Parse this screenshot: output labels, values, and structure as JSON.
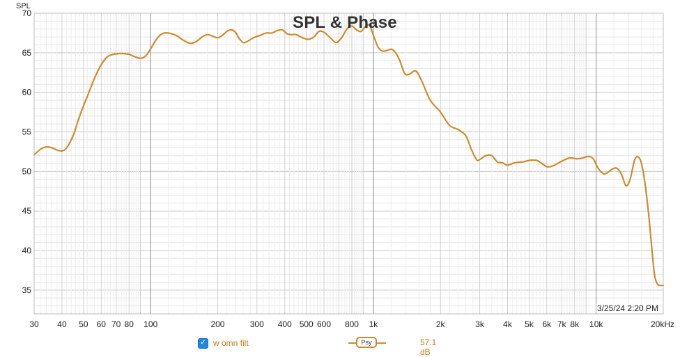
{
  "chart_data": {
    "type": "line",
    "title": "SPL & Phase",
    "ylabel": "SPL",
    "xlabel": "",
    "x_scale": "log",
    "xlim": [
      30,
      20000
    ],
    "ylim": [
      32,
      70
    ],
    "y_ticks": [
      35,
      40,
      45,
      50,
      55,
      60,
      65,
      70
    ],
    "x_ticks": [
      {
        "value": 30,
        "label": "30"
      },
      {
        "value": 40,
        "label": "40"
      },
      {
        "value": 50,
        "label": "50"
      },
      {
        "value": 60,
        "label": "60"
      },
      {
        "value": 70,
        "label": "70"
      },
      {
        "value": 80,
        "label": "80"
      },
      {
        "value": 100,
        "label": "100"
      },
      {
        "value": 200,
        "label": "200"
      },
      {
        "value": 300,
        "label": "300"
      },
      {
        "value": 400,
        "label": "400"
      },
      {
        "value": 500,
        "label": "500"
      },
      {
        "value": 600,
        "label": "600"
      },
      {
        "value": 800,
        "label": "800"
      },
      {
        "value": 1000,
        "label": "1k"
      },
      {
        "value": 2000,
        "label": "2k"
      },
      {
        "value": 3000,
        "label": "3k"
      },
      {
        "value": 4000,
        "label": "4k"
      },
      {
        "value": 5000,
        "label": "5k"
      },
      {
        "value": 6000,
        "label": "6k"
      },
      {
        "value": 7000,
        "label": "7k"
      },
      {
        "value": 8000,
        "label": "8k"
      },
      {
        "value": 10000,
        "label": "10k"
      },
      {
        "value": 20000,
        "label": "20kHz"
      }
    ],
    "grid": true,
    "series": [
      {
        "name": "w omn filt",
        "color": "#d08a2c",
        "points": [
          [
            30,
            52.1
          ],
          [
            32,
            52.8
          ],
          [
            34,
            53.1
          ],
          [
            36,
            53.0
          ],
          [
            38,
            52.7
          ],
          [
            40,
            52.6
          ],
          [
            42,
            53.0
          ],
          [
            45,
            54.6
          ],
          [
            48,
            57.0
          ],
          [
            52,
            59.5
          ],
          [
            56,
            61.8
          ],
          [
            60,
            63.5
          ],
          [
            64,
            64.5
          ],
          [
            68,
            64.8
          ],
          [
            72,
            64.9
          ],
          [
            76,
            64.9
          ],
          [
            80,
            64.8
          ],
          [
            85,
            64.5
          ],
          [
            90,
            64.3
          ],
          [
            95,
            64.6
          ],
          [
            100,
            65.5
          ],
          [
            105,
            66.5
          ],
          [
            110,
            67.2
          ],
          [
            115,
            67.5
          ],
          [
            120,
            67.5
          ],
          [
            130,
            67.2
          ],
          [
            140,
            66.6
          ],
          [
            150,
            66.2
          ],
          [
            160,
            66.4
          ],
          [
            170,
            67.0
          ],
          [
            180,
            67.3
          ],
          [
            190,
            67.1
          ],
          [
            200,
            66.9
          ],
          [
            210,
            67.2
          ],
          [
            220,
            67.7
          ],
          [
            230,
            67.9
          ],
          [
            240,
            67.6
          ],
          [
            250,
            66.8
          ],
          [
            260,
            66.3
          ],
          [
            270,
            66.4
          ],
          [
            290,
            66.9
          ],
          [
            310,
            67.2
          ],
          [
            330,
            67.5
          ],
          [
            350,
            67.5
          ],
          [
            370,
            67.8
          ],
          [
            390,
            67.9
          ],
          [
            410,
            67.4
          ],
          [
            430,
            67.3
          ],
          [
            450,
            67.3
          ],
          [
            480,
            66.9
          ],
          [
            510,
            66.7
          ],
          [
            540,
            67.0
          ],
          [
            570,
            67.7
          ],
          [
            600,
            67.6
          ],
          [
            640,
            66.9
          ],
          [
            680,
            66.3
          ],
          [
            720,
            66.9
          ],
          [
            760,
            68.0
          ],
          [
            800,
            68.4
          ],
          [
            840,
            67.9
          ],
          [
            880,
            67.7
          ],
          [
            920,
            68.3
          ],
          [
            960,
            68.5
          ],
          [
            1000,
            67.2
          ],
          [
            1050,
            65.7
          ],
          [
            1100,
            65.2
          ],
          [
            1150,
            65.3
          ],
          [
            1220,
            65.4
          ],
          [
            1300,
            64.3
          ],
          [
            1380,
            62.4
          ],
          [
            1450,
            62.3
          ],
          [
            1550,
            62.7
          ],
          [
            1650,
            61.4
          ],
          [
            1800,
            59.0
          ],
          [
            2000,
            57.5
          ],
          [
            2200,
            55.8
          ],
          [
            2400,
            55.3
          ],
          [
            2600,
            54.5
          ],
          [
            2750,
            52.8
          ],
          [
            2900,
            51.5
          ],
          [
            3000,
            51.5
          ],
          [
            3200,
            52.0
          ],
          [
            3400,
            52.0
          ],
          [
            3600,
            51.2
          ],
          [
            3800,
            51.1
          ],
          [
            4000,
            50.8
          ],
          [
            4300,
            51.1
          ],
          [
            4700,
            51.2
          ],
          [
            5000,
            51.4
          ],
          [
            5400,
            51.4
          ],
          [
            5700,
            51.0
          ],
          [
            6000,
            50.6
          ],
          [
            6400,
            50.7
          ],
          [
            7000,
            51.3
          ],
          [
            7600,
            51.7
          ],
          [
            8200,
            51.6
          ],
          [
            8700,
            51.7
          ],
          [
            9200,
            51.9
          ],
          [
            9700,
            51.6
          ],
          [
            10200,
            50.4
          ],
          [
            10800,
            49.7
          ],
          [
            11300,
            49.9
          ],
          [
            11800,
            50.3
          ],
          [
            12400,
            50.4
          ],
          [
            13000,
            49.6
          ],
          [
            13600,
            48.2
          ],
          [
            14200,
            49.0
          ],
          [
            14900,
            51.5
          ],
          [
            15500,
            51.8
          ],
          [
            16000,
            50.9
          ],
          [
            16600,
            48.3
          ],
          [
            17200,
            44.5
          ],
          [
            17800,
            40.0
          ],
          [
            18300,
            36.8
          ],
          [
            18900,
            35.7
          ],
          [
            19500,
            35.6
          ],
          [
            20000,
            35.6
          ]
        ]
      }
    ]
  },
  "timestamp": "3/25/24 2:20 PM",
  "legend": {
    "checked": true,
    "series_name": "w omn filt",
    "psy_label": "Psy",
    "level": "57.1 dB",
    "color": "#c97a14"
  }
}
